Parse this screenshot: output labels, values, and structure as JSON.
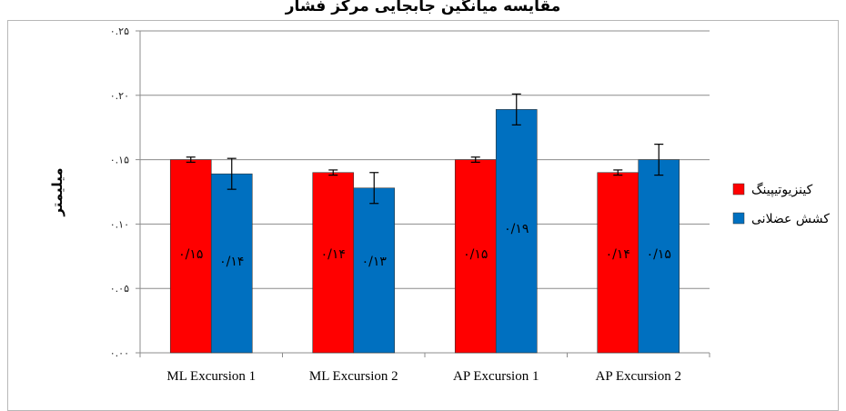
{
  "chart_data": {
    "type": "bar",
    "title": "مقایسه میانگین جابجایی مرکز فشار",
    "ylabel": "میلیمتر",
    "xlabel": "",
    "ylim": [
      0,
      0.25
    ],
    "yticks": [
      0.0,
      0.05,
      0.1,
      0.15,
      0.2,
      0.25
    ],
    "ytick_labels": [
      "۰.۰۰",
      "۰.۰۵",
      "۰.۱۰",
      "۰.۱۵",
      "۰.۲۰",
      "۰.۲۵"
    ],
    "grid": true,
    "legend_position": "right",
    "categories": [
      "ML Excursion 1",
      "ML Excursion 2",
      "AP Excursion 1",
      "AP Excursion 2"
    ],
    "series": [
      {
        "name": "کینزیوتیپینگ",
        "color": "#ff0000",
        "values": [
          0.15,
          0.14,
          0.15,
          0.14
        ],
        "errors": [
          0.002,
          0.002,
          0.002,
          0.002
        ],
        "data_labels": [
          "۰/۱۵",
          "۰/۱۴",
          "۰/۱۵",
          "۰/۱۴"
        ]
      },
      {
        "name": "کشش عضلانی",
        "color": "#0070c0",
        "values": [
          0.139,
          0.128,
          0.189,
          0.15
        ],
        "errors": [
          0.012,
          0.012,
          0.012,
          0.012
        ],
        "data_labels": [
          "۰/۱۴",
          "۰/۱۳",
          "۰/۱۹",
          "۰/۱۵"
        ]
      }
    ]
  }
}
